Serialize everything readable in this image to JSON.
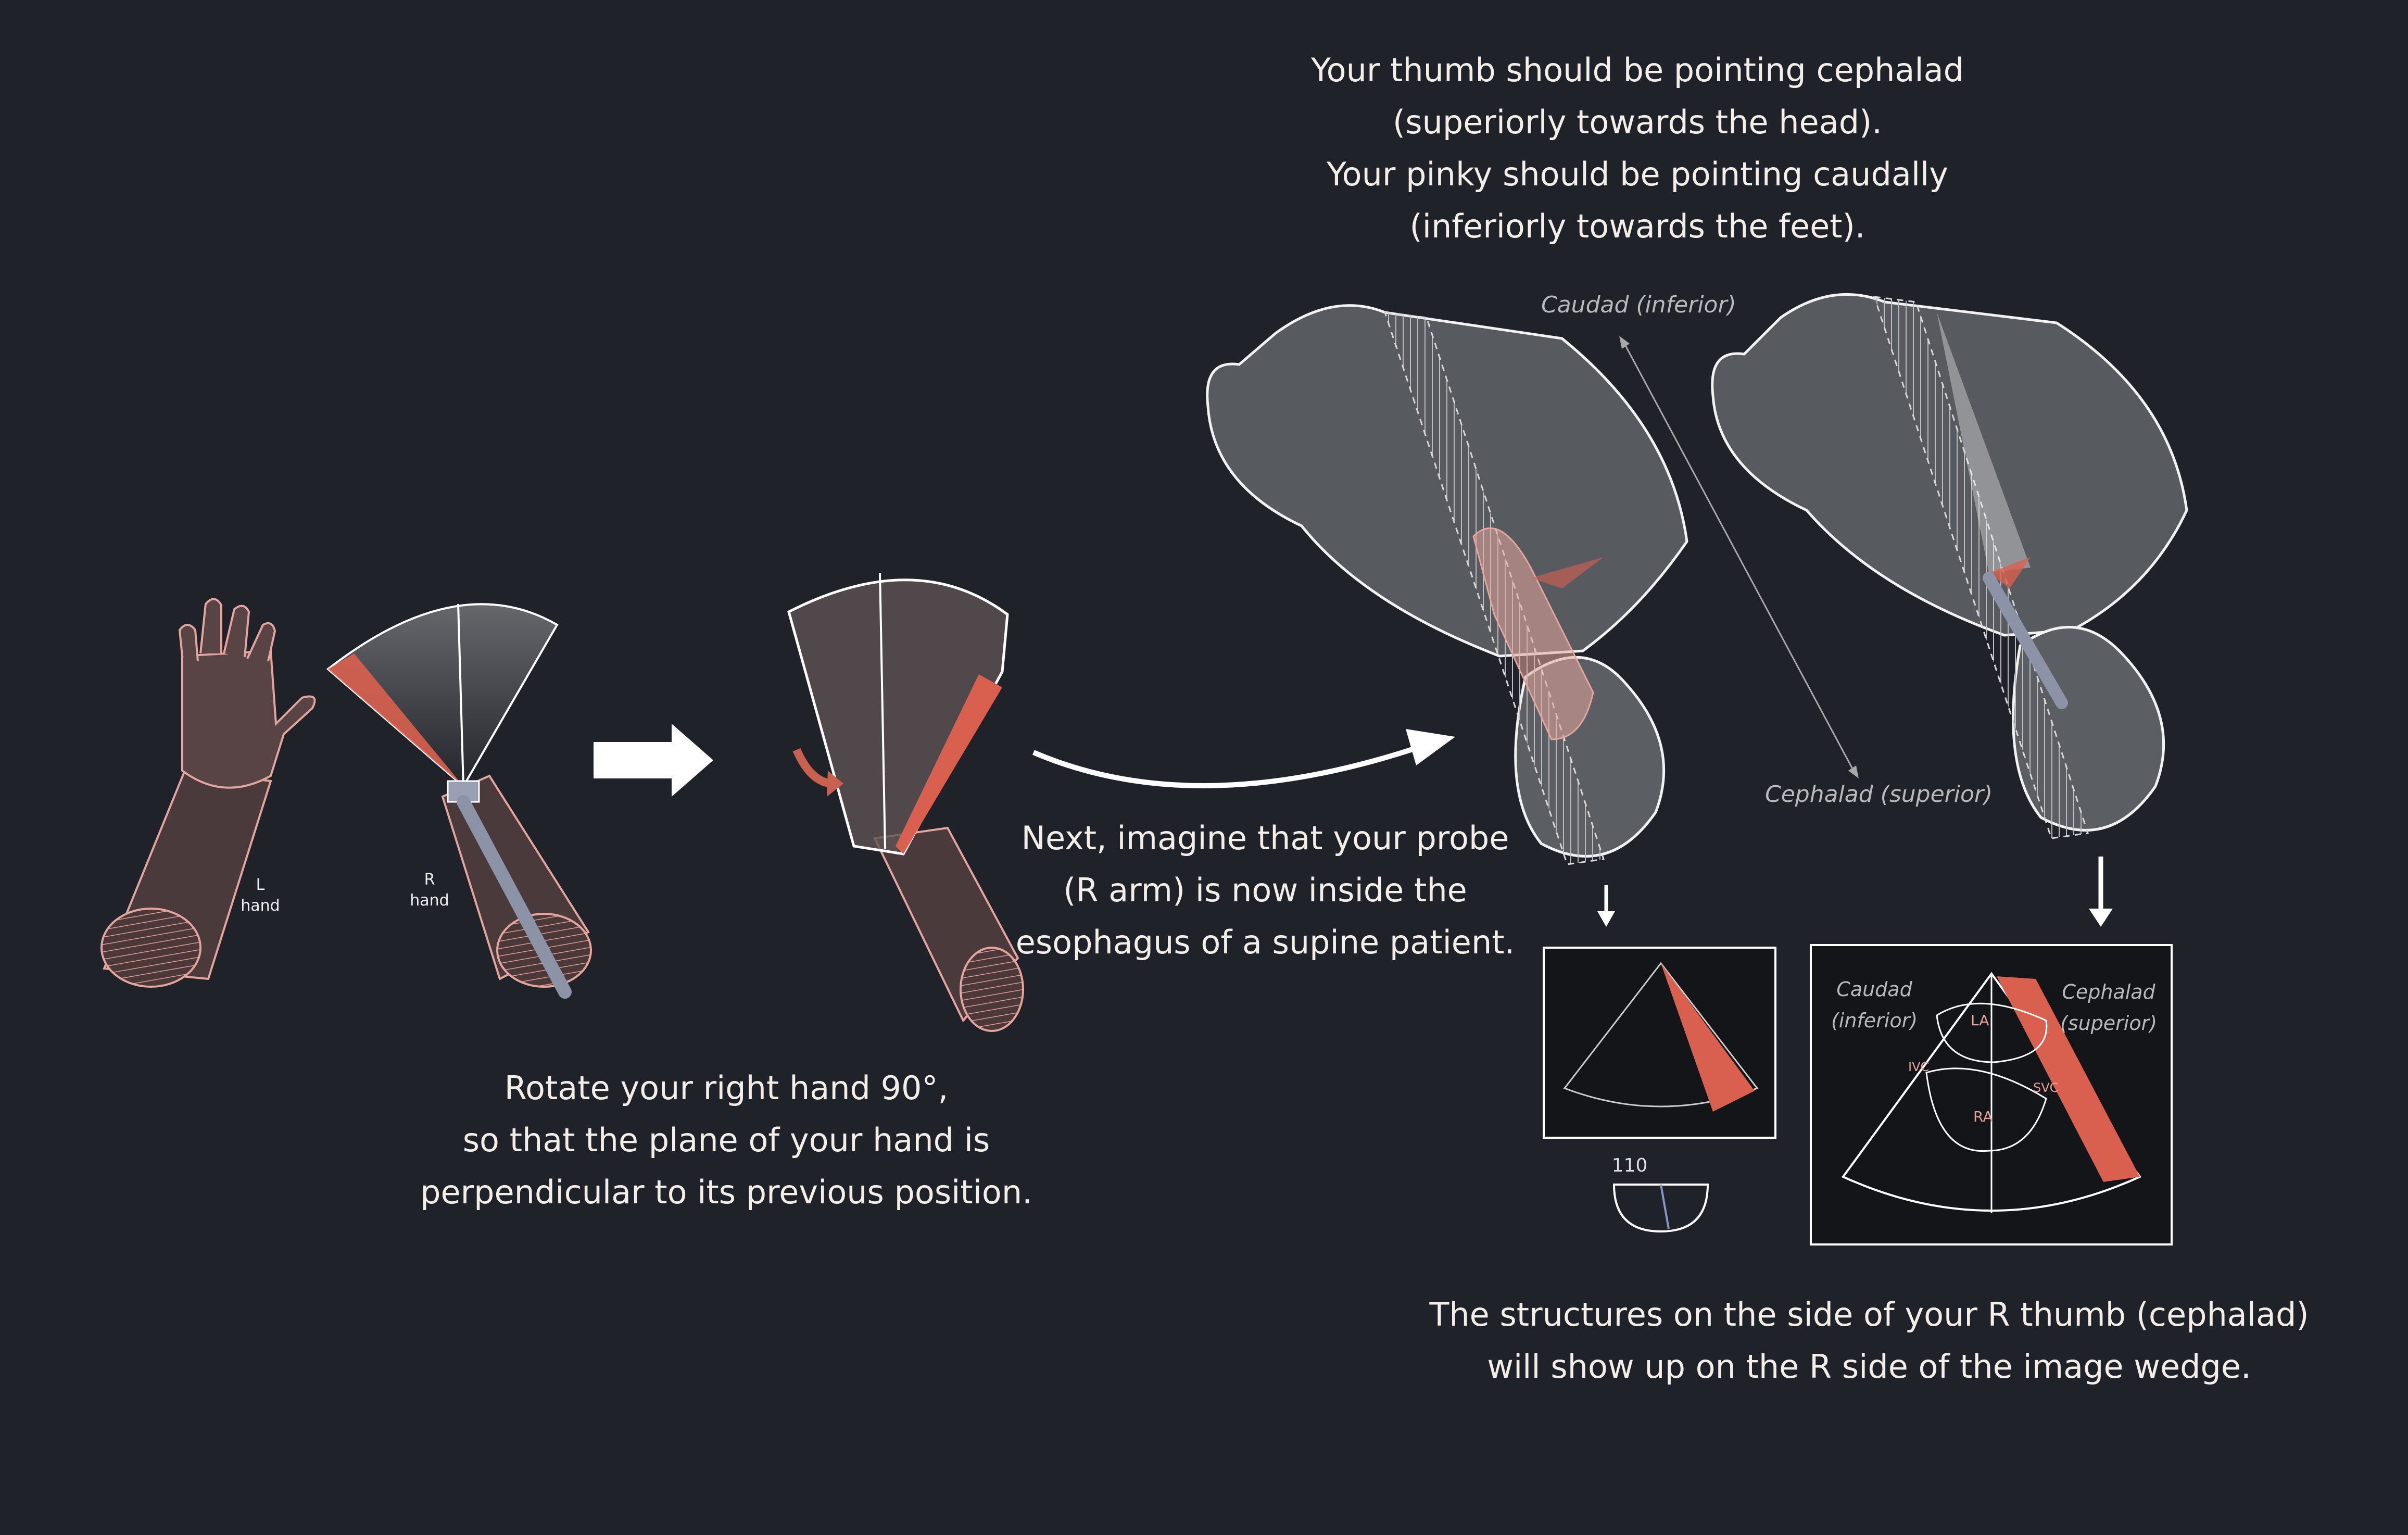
{
  "captions": {
    "top": [
      "Your thumb should be pointing cephalad",
      "(superiorly towards the head).",
      "Your pinky should be pointing caudally",
      "(inferiorly towards the feet)."
    ],
    "rotate": [
      "Rotate your right hand 90°,",
      "so that the plane of your hand is",
      "perpendicular to its previous position."
    ],
    "next": [
      "Next, imagine that your probe",
      "(R arm) is now inside the",
      "esophagus of a supine patient."
    ],
    "bottom": [
      "The structures on the side of your R thumb (cephalad)",
      "will show up on the R side of the image wedge."
    ]
  },
  "axis_labels": {
    "caudad": "Caudad (inferior)",
    "cephalad": "Cephalad (superior)"
  },
  "hand_labels": {
    "left_letter": "L",
    "left_word": "hand",
    "right_letter": "R",
    "right_word": "hand"
  },
  "echo_view": {
    "caudad_line1": "Caudad",
    "caudad_line2": "(inferior)",
    "cephalad_line1": "Cephalad",
    "cephalad_line2": "(superior)",
    "la": "LA",
    "ra": "RA",
    "ivc": "IVC",
    "svc": "SVC"
  },
  "omniplane_angle": "110",
  "colors": {
    "background": "#1f2228",
    "skin": "#5a4646",
    "skin_outline": "#e3a59d",
    "beam_red": "#d9604f",
    "body_gray": "#5b5e62",
    "outline": "#f2f2f2",
    "probe": "#8d93a6"
  },
  "icons": {
    "arrow_right": "block-arrow-right",
    "arrow_curved": "curved-arrow",
    "rotate": "rotate-arrow",
    "arrow_down": "down-arrow"
  }
}
